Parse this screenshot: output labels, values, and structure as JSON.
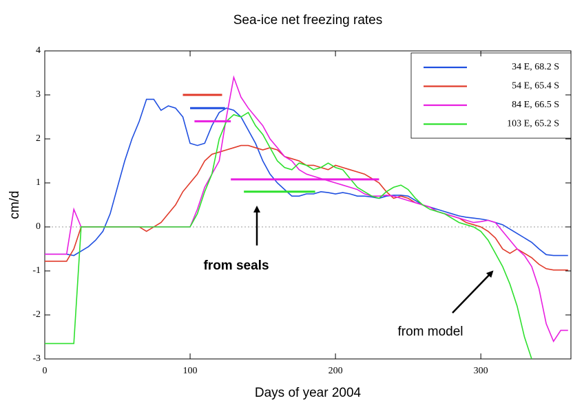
{
  "chart_data": {
    "type": "line",
    "title": "Sea-ice net freezing rates",
    "x_label": "Days of year 2004",
    "y_label": "cm/d",
    "xlim": [
      0,
      362
    ],
    "ylim": [
      -3,
      4
    ],
    "xticks": [
      0,
      100,
      200,
      300
    ],
    "yticks": [
      -3,
      -2,
      -1,
      0,
      1,
      2,
      3,
      4
    ],
    "legend": "upper right",
    "reference_line": 0,
    "x": [
      0,
      5,
      10,
      15,
      20,
      25,
      30,
      35,
      40,
      45,
      50,
      55,
      60,
      65,
      70,
      75,
      80,
      85,
      90,
      95,
      100,
      105,
      110,
      115,
      120,
      125,
      130,
      135,
      140,
      145,
      150,
      155,
      160,
      165,
      170,
      175,
      180,
      185,
      190,
      195,
      200,
      205,
      210,
      215,
      220,
      225,
      230,
      235,
      240,
      245,
      250,
      255,
      260,
      265,
      270,
      275,
      280,
      285,
      290,
      295,
      300,
      305,
      310,
      315,
      320,
      325,
      330,
      335,
      340,
      345,
      350,
      355,
      360
    ],
    "series": [
      {
        "name": "34 E, 68.2 S",
        "color": "#1f4fe0",
        "values": [
          -0.62,
          -0.62,
          -0.62,
          -0.62,
          -0.65,
          -0.55,
          -0.45,
          -0.3,
          -0.1,
          0.3,
          0.9,
          1.5,
          2.0,
          2.4,
          2.9,
          2.9,
          2.65,
          2.75,
          2.7,
          2.5,
          1.9,
          1.85,
          1.9,
          2.3,
          2.6,
          2.7,
          2.65,
          2.5,
          2.2,
          1.9,
          1.5,
          1.2,
          1.0,
          0.85,
          0.7,
          0.7,
          0.75,
          0.75,
          0.8,
          0.78,
          0.75,
          0.78,
          0.75,
          0.7,
          0.7,
          0.68,
          0.65,
          0.7,
          0.72,
          0.72,
          0.7,
          0.6,
          0.5,
          0.45,
          0.4,
          0.35,
          0.3,
          0.25,
          0.22,
          0.2,
          0.18,
          0.15,
          0.1,
          0.05,
          -0.05,
          -0.15,
          -0.25,
          -0.35,
          -0.5,
          -0.63,
          -0.65,
          -0.65,
          -0.65
        ]
      },
      {
        "name": "54 E, 65.4 S",
        "color": "#e03a2a",
        "values": [
          -0.78,
          -0.78,
          -0.78,
          -0.78,
          -0.5,
          0,
          0,
          0,
          0,
          0,
          0,
          0,
          0,
          0,
          -0.1,
          0,
          0.1,
          0.3,
          0.5,
          0.8,
          1.0,
          1.2,
          1.5,
          1.65,
          1.7,
          1.75,
          1.8,
          1.85,
          1.85,
          1.8,
          1.75,
          1.8,
          1.75,
          1.6,
          1.55,
          1.5,
          1.4,
          1.4,
          1.35,
          1.3,
          1.4,
          1.35,
          1.3,
          1.25,
          1.2,
          1.1,
          1.0,
          0.8,
          0.65,
          0.7,
          0.65,
          0.55,
          0.5,
          0.45,
          0.35,
          0.3,
          0.25,
          0.2,
          0.1,
          0.05,
          0,
          -0.1,
          -0.25,
          -0.5,
          -0.6,
          -0.5,
          -0.6,
          -0.7,
          -0.85,
          -0.95,
          -0.98,
          -0.98,
          -0.98
        ]
      },
      {
        "name": "84 E, 66.5 S",
        "color": "#e81ee0",
        "values": [
          -0.62,
          -0.62,
          -0.62,
          -0.62,
          0.4,
          0,
          0,
          0,
          0,
          0,
          0,
          0,
          0,
          0,
          0,
          0,
          0,
          0,
          0,
          0,
          0,
          0.4,
          0.9,
          1.2,
          1.5,
          2.5,
          3.4,
          2.95,
          2.7,
          2.5,
          2.3,
          2.0,
          1.8,
          1.6,
          1.5,
          1.3,
          1.2,
          1.15,
          1.1,
          1.05,
          1.0,
          0.95,
          0.9,
          0.85,
          0.75,
          0.7,
          0.7,
          0.72,
          0.7,
          0.65,
          0.6,
          0.55,
          0.5,
          0.45,
          0.35,
          0.3,
          0.25,
          0.2,
          0.15,
          0.1,
          0.12,
          0.15,
          0.1,
          -0.1,
          -0.3,
          -0.5,
          -0.65,
          -0.9,
          -1.4,
          -2.2,
          -2.6,
          -2.35,
          -2.35
        ]
      },
      {
        "name": "103 E, 65.2 S",
        "color": "#2ee02e",
        "values": [
          -2.65,
          -2.65,
          -2.65,
          -2.65,
          -2.65,
          0,
          0,
          0,
          0,
          0,
          0,
          0,
          0,
          0,
          0,
          0,
          0,
          0,
          0,
          0,
          0,
          0.3,
          0.8,
          1.2,
          2.0,
          2.4,
          2.55,
          2.5,
          2.6,
          2.3,
          2.1,
          1.8,
          1.5,
          1.35,
          1.3,
          1.45,
          1.4,
          1.3,
          1.35,
          1.45,
          1.35,
          1.3,
          1.1,
          0.9,
          0.8,
          0.7,
          0.65,
          0.8,
          0.9,
          0.95,
          0.85,
          0.65,
          0.5,
          0.4,
          0.35,
          0.3,
          0.2,
          0.1,
          0.05,
          0,
          -0.1,
          -0.3,
          -0.6,
          -0.9,
          -1.3,
          -1.8,
          -2.5,
          -3.0,
          null,
          null,
          null,
          null,
          null
        ]
      }
    ],
    "reference_segments": [
      {
        "color": "#e03a2a",
        "x": [
          95,
          122
        ],
        "value": 3.0
      },
      {
        "color": "#1f4fe0",
        "x": [
          100,
          124
        ],
        "value": 2.7
      },
      {
        "color": "#e81ee0",
        "x": [
          103,
          128
        ],
        "value": 2.4
      },
      {
        "color": "#e81ee0",
        "x": [
          128,
          230
        ],
        "value": 1.08
      },
      {
        "color": "#2ee02e",
        "x": [
          137,
          186
        ],
        "value": 0.8
      }
    ],
    "annotations": [
      "from seals",
      "from model"
    ]
  }
}
